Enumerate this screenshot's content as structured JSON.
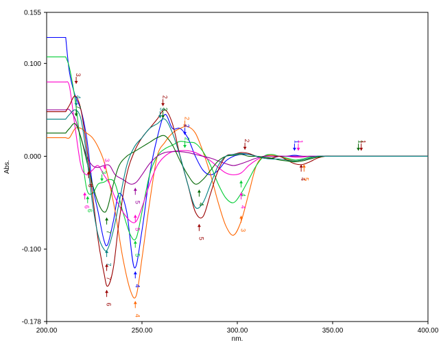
{
  "chart_data": {
    "type": "line",
    "title": "",
    "xlabel": "nm.",
    "ylabel": "Abs.",
    "xlim": [
      200.0,
      400.0
    ],
    "ylim": [
      -0.178,
      0.155
    ],
    "x_ticks": [
      {
        "value": 200,
        "label": "200.00"
      },
      {
        "value": 250,
        "label": "250.00"
      },
      {
        "value": 300,
        "label": "300.00"
      },
      {
        "value": 350,
        "label": "350.00"
      },
      {
        "value": 400,
        "label": "400.00"
      }
    ],
    "y_ticks": [
      {
        "value": 0.155,
        "label": "0.155"
      },
      {
        "value": 0.1,
        "label": "0.100"
      },
      {
        "value": 0.0,
        "label": "0.000"
      },
      {
        "value": -0.1,
        "label": "-0.100"
      },
      {
        "value": -0.178,
        "label": "-0.178"
      }
    ],
    "grid": false,
    "legend": "none",
    "series": [
      {
        "color": "#0000ff",
        "x": [
          200,
          210,
          212,
          215,
          218,
          221,
          224,
          227,
          230,
          232,
          235,
          238,
          242,
          246,
          250,
          254,
          258,
          262,
          266,
          270,
          274,
          278,
          282,
          286,
          290,
          294,
          298,
          302,
          306,
          310,
          314,
          318,
          322,
          326,
          330,
          334,
          338,
          342,
          346,
          350,
          360,
          370,
          380,
          400
        ],
        "y": [
          0.128,
          0.128,
          0.09,
          0.065,
          0.05,
          0.02,
          -0.03,
          -0.06,
          -0.09,
          -0.095,
          -0.07,
          -0.04,
          -0.06,
          -0.12,
          -0.08,
          -0.02,
          0.02,
          0.045,
          0.03,
          0.03,
          0.02,
          0.0,
          -0.015,
          -0.02,
          -0.015,
          -0.005,
          0.0,
          0.002,
          0.002,
          0.0,
          -0.002,
          -0.002,
          0.0,
          0.0,
          0.001,
          0.0,
          0.0,
          0.0,
          0.0,
          0.0,
          0.0,
          0.0,
          0.0,
          0.0
        ]
      },
      {
        "color": "#ff6600",
        "x": [
          200,
          210,
          212,
          215,
          218,
          221,
          224,
          227,
          230,
          233,
          236,
          240,
          244,
          247,
          250,
          254,
          258,
          262,
          266,
          270,
          274,
          278,
          282,
          286,
          290,
          294,
          298,
          302,
          306,
          310,
          314,
          318,
          322,
          326,
          330,
          334,
          338,
          342,
          346,
          350,
          360,
          370,
          380,
          400
        ],
        "y": [
          0.02,
          0.02,
          0.02,
          0.03,
          0.03,
          0.025,
          0.02,
          0.01,
          -0.005,
          -0.03,
          -0.06,
          -0.11,
          -0.145,
          -0.15,
          -0.11,
          -0.05,
          0.0,
          0.015,
          0.025,
          0.03,
          0.032,
          0.025,
          0.005,
          -0.02,
          -0.05,
          -0.075,
          -0.085,
          -0.07,
          -0.04,
          -0.01,
          0.0,
          0.001,
          0.0,
          -0.003,
          -0.005,
          -0.004,
          -0.002,
          0.0,
          0.0,
          0.0,
          0.0,
          0.0,
          0.0,
          0.0
        ]
      },
      {
        "color": "#00cc33",
        "x": [
          200,
          210,
          212,
          215,
          218,
          221,
          224,
          227,
          230,
          233,
          236,
          240,
          244,
          247,
          250,
          254,
          258,
          262,
          266,
          270,
          274,
          278,
          282,
          286,
          290,
          294,
          298,
          302,
          306,
          310,
          314,
          318,
          322,
          326,
          330,
          334,
          338,
          342,
          346,
          350,
          360,
          370,
          380,
          400
        ],
        "y": [
          0.107,
          0.107,
          0.095,
          0.06,
          0.01,
          -0.035,
          -0.04,
          -0.03,
          -0.028,
          -0.025,
          -0.03,
          -0.06,
          -0.085,
          -0.088,
          -0.06,
          -0.02,
          0.0,
          0.008,
          0.012,
          0.016,
          0.015,
          0.014,
          0.005,
          -0.01,
          -0.03,
          -0.045,
          -0.05,
          -0.04,
          -0.025,
          -0.01,
          0.0,
          0.002,
          0.0,
          -0.002,
          -0.004,
          -0.003,
          -0.001,
          0.0,
          0.0,
          0.0,
          0.0,
          0.0,
          0.0,
          0.0
        ]
      },
      {
        "color": "#ff00cc",
        "x": [
          200,
          210,
          212,
          215,
          218,
          221,
          224,
          227,
          230,
          233,
          236,
          240,
          244,
          247,
          250,
          254,
          258,
          262,
          266,
          270,
          274,
          278,
          282,
          286,
          290,
          294,
          298,
          302,
          306,
          310,
          314,
          318,
          322,
          326,
          330,
          334,
          338,
          342,
          346,
          350,
          360,
          370,
          380,
          400
        ],
        "y": [
          0.08,
          0.08,
          0.075,
          0.03,
          -0.01,
          -0.02,
          -0.015,
          -0.01,
          -0.02,
          -0.03,
          -0.045,
          -0.06,
          -0.07,
          -0.07,
          -0.055,
          -0.03,
          -0.01,
          0.0,
          0.005,
          0.006,
          0.006,
          0.004,
          0.0,
          -0.005,
          -0.012,
          -0.018,
          -0.02,
          -0.018,
          -0.01,
          -0.004,
          0.0,
          0.0,
          0.0,
          0.0,
          -0.001,
          -0.001,
          0.0,
          0.0,
          0.0,
          0.0,
          0.0,
          0.0,
          0.0,
          0.0
        ]
      },
      {
        "color": "#990099",
        "x": [
          200,
          210,
          212,
          215,
          218,
          221,
          224,
          227,
          230,
          233,
          236,
          240,
          244,
          247,
          250,
          254,
          258,
          262,
          266,
          270,
          274,
          278,
          282,
          286,
          290,
          294,
          298,
          302,
          306,
          310,
          314,
          318,
          322,
          326,
          330,
          334,
          338,
          342,
          346,
          350,
          360,
          370,
          380,
          400
        ],
        "y": [
          0.05,
          0.05,
          0.05,
          0.04,
          0.02,
          0.0,
          -0.01,
          -0.012,
          -0.01,
          -0.01,
          -0.02,
          -0.025,
          -0.03,
          -0.028,
          -0.02,
          -0.008,
          0.0,
          0.004,
          0.005,
          0.005,
          0.004,
          0.002,
          0.0,
          -0.002,
          -0.005,
          -0.008,
          -0.01,
          -0.008,
          -0.005,
          -0.002,
          0.0,
          0.0,
          0.0,
          0.0,
          0.0,
          0.0,
          0.0,
          0.0,
          0.0,
          0.0,
          0.0,
          0.0,
          0.0,
          0.0
        ]
      },
      {
        "color": "#990000",
        "x": [
          200,
          210,
          212,
          215,
          218,
          221,
          224,
          227,
          230,
          232,
          235,
          238,
          242,
          246,
          250,
          254,
          258,
          262,
          266,
          270,
          274,
          278,
          282,
          286,
          290,
          294,
          298,
          302,
          306,
          310,
          314,
          318,
          322,
          326,
          330,
          334,
          338,
          342,
          346,
          350,
          360,
          370,
          380,
          400
        ],
        "y": [
          0.048,
          0.048,
          0.055,
          0.065,
          0.05,
          0.01,
          -0.04,
          -0.09,
          -0.125,
          -0.14,
          -0.12,
          -0.07,
          -0.02,
          0.005,
          0.02,
          0.03,
          0.04,
          0.05,
          0.035,
          0.0,
          -0.03,
          -0.06,
          -0.065,
          -0.04,
          -0.015,
          0.0,
          0.002,
          0.004,
          0.003,
          0.0,
          -0.002,
          -0.002,
          0.0,
          -0.004,
          -0.008,
          -0.009,
          -0.006,
          -0.002,
          0.0,
          0.0,
          0.0,
          0.0,
          0.0,
          0.0
        ]
      },
      {
        "color": "#006600",
        "x": [
          200,
          210,
          212,
          215,
          218,
          221,
          224,
          227,
          230,
          232,
          235,
          238,
          242,
          246,
          250,
          254,
          258,
          262,
          266,
          270,
          274,
          278,
          282,
          286,
          290,
          294,
          298,
          302,
          306,
          310,
          314,
          318,
          322,
          326,
          330,
          334,
          338,
          342,
          346,
          350,
          360,
          370,
          380,
          400
        ],
        "y": [
          0.025,
          0.025,
          0.03,
          0.035,
          0.02,
          -0.005,
          -0.03,
          -0.05,
          -0.06,
          -0.055,
          -0.03,
          -0.01,
          0.0,
          0.005,
          0.01,
          0.015,
          0.02,
          0.022,
          0.012,
          -0.005,
          -0.02,
          -0.03,
          -0.025,
          -0.015,
          -0.005,
          0.0,
          0.001,
          0.002,
          0.0,
          0.0,
          -0.001,
          -0.002,
          -0.004,
          -0.005,
          -0.006,
          -0.005,
          -0.003,
          -0.001,
          0.0,
          0.0,
          0.0,
          0.0,
          0.0,
          0.0
        ]
      },
      {
        "color": "#008080",
        "x": [
          200,
          210,
          212,
          215,
          218,
          221,
          224,
          227,
          230,
          232,
          235,
          238,
          242,
          246,
          250,
          254,
          258,
          262,
          266,
          270,
          274,
          278,
          282,
          286,
          290,
          294,
          298,
          302,
          306,
          310,
          314,
          318,
          322,
          326,
          330,
          334,
          338,
          342,
          346,
          350,
          360,
          370,
          380,
          400
        ],
        "y": [
          0.04,
          0.04,
          0.045,
          0.05,
          0.04,
          0.0,
          -0.05,
          -0.085,
          -0.1,
          -0.1,
          -0.08,
          -0.05,
          -0.01,
          0.01,
          0.02,
          0.03,
          0.035,
          0.04,
          0.025,
          0.0,
          -0.03,
          -0.055,
          -0.05,
          -0.03,
          -0.01,
          0.0,
          0.002,
          0.003,
          0.002,
          0.0,
          -0.002,
          -0.003,
          -0.003,
          -0.004,
          -0.005,
          -0.004,
          -0.002,
          0.0,
          0.0,
          0.0,
          0.0,
          0.0,
          0.0,
          0.0
        ]
      }
    ],
    "annotations": [
      {
        "text": "3",
        "x": 215.5,
        "y": 0.087,
        "color": "#990000",
        "arrow": "down"
      },
      {
        "text": "4",
        "x": 215.5,
        "y": 0.063,
        "color": "#008080",
        "arrow": "down"
      },
      {
        "text": "7",
        "x": 215.5,
        "y": 0.052,
        "color": "#006600",
        "arrow": "down"
      },
      {
        "text": "6",
        "x": 222.0,
        "y": -0.025,
        "color": "#990000",
        "arrow": "up"
      },
      {
        "text": "6",
        "x": 220.0,
        "y": -0.048,
        "color": "#ff00cc",
        "arrow": "up"
      },
      {
        "text": "6",
        "x": 221.5,
        "y": -0.052,
        "color": "#00cc33",
        "arrow": "up"
      },
      {
        "text": "3",
        "x": 230.5,
        "y": -0.005,
        "color": "#ff00cc",
        "arrow": "down"
      },
      {
        "text": "3",
        "x": 229.0,
        "y": -0.018,
        "color": "#00cc33",
        "arrow": "down"
      },
      {
        "text": "7",
        "x": 231.5,
        "y": -0.075,
        "color": "#006600",
        "arrow": "up"
      },
      {
        "text": "7",
        "x": 231.5,
        "y": -0.11,
        "color": "#008080",
        "arrow": "up"
      },
      {
        "text": "7",
        "x": 231.5,
        "y": -0.125,
        "color": "#990000",
        "arrow": "up"
      },
      {
        "text": "6",
        "x": 231.5,
        "y": -0.153,
        "color": "#990000",
        "arrow": "up"
      },
      {
        "text": "5",
        "x": 246.5,
        "y": -0.043,
        "color": "#990099",
        "arrow": "up"
      },
      {
        "text": "5",
        "x": 246.5,
        "y": -0.072,
        "color": "#ff00cc",
        "arrow": "up"
      },
      {
        "text": "5",
        "x": 246.5,
        "y": -0.1,
        "color": "#00cc33",
        "arrow": "up"
      },
      {
        "text": "4",
        "x": 246.5,
        "y": -0.133,
        "color": "#0000ff",
        "arrow": "up"
      },
      {
        "text": "4",
        "x": 246.5,
        "y": -0.165,
        "color": "#ff6600",
        "arrow": "up"
      },
      {
        "text": "2",
        "x": 261.0,
        "y": 0.063,
        "color": "#990000",
        "arrow": "down"
      },
      {
        "text": "3",
        "x": 259.5,
        "y": 0.05,
        "color": "#008080",
        "arrow": "down"
      },
      {
        "text": "3",
        "x": 261.0,
        "y": 0.05,
        "color": "#006600",
        "arrow": "down"
      },
      {
        "text": "2",
        "x": 272.5,
        "y": 0.04,
        "color": "#ff6600",
        "arrow": "down"
      },
      {
        "text": "2",
        "x": 272.5,
        "y": 0.032,
        "color": "#0000ff",
        "arrow": "down"
      },
      {
        "text": "2",
        "x": 272.5,
        "y": 0.018,
        "color": "#00cc33",
        "arrow": "down"
      },
      {
        "text": "4",
        "x": 280.0,
        "y": -0.045,
        "color": "#006600",
        "arrow": "up"
      },
      {
        "text": "5",
        "x": 280.0,
        "y": -0.082,
        "color": "#990000",
        "arrow": "up"
      },
      {
        "text": "4",
        "x": 302.0,
        "y": -0.035,
        "color": "#00cc33",
        "arrow": "up"
      },
      {
        "text": "4",
        "x": 302.0,
        "y": -0.048,
        "color": "#ff00cc",
        "arrow": "up"
      },
      {
        "text": "3",
        "x": 302.0,
        "y": -0.073,
        "color": "#ff6600",
        "arrow": "up"
      },
      {
        "text": "2",
        "x": 304.0,
        "y": 0.016,
        "color": "#990000",
        "arrow": "down"
      },
      {
        "text": "1",
        "x": 330.0,
        "y": 0.015,
        "color": "#0000ff",
        "arrow": "down"
      },
      {
        "text": "1",
        "x": 332.0,
        "y": 0.015,
        "color": "#ff00cc",
        "arrow": "down"
      },
      {
        "text": "1",
        "x": 363.5,
        "y": 0.015,
        "color": "#006600",
        "arrow": "down"
      },
      {
        "text": "1",
        "x": 365.0,
        "y": 0.015,
        "color": "#990000",
        "arrow": "down"
      },
      {
        "text": "4",
        "x": 333.5,
        "y": -0.018,
        "color": "#990000",
        "arrow": "up"
      },
      {
        "text": "5",
        "x": 335.0,
        "y": -0.018,
        "color": "#ff6600",
        "arrow": "up"
      }
    ]
  }
}
